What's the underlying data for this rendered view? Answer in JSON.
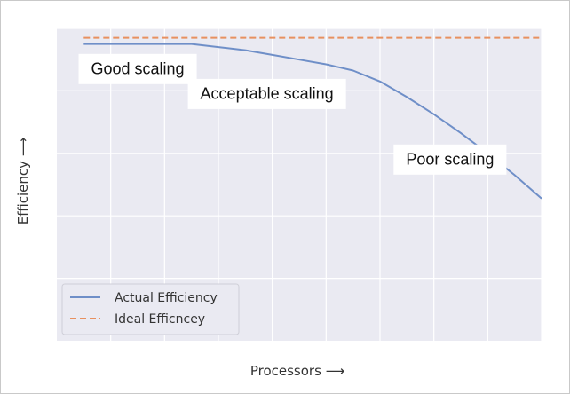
{
  "chart_data": {
    "type": "line",
    "title": "",
    "xlabel": "Processors ⟶",
    "ylabel": "Efficiency ⟶",
    "xlim": [
      0,
      9
    ],
    "ylim": [
      0,
      1
    ],
    "grid": true,
    "tick_labels_shown": false,
    "legend_position": "lower-left",
    "series": [
      {
        "name": "Actual Efficiency",
        "style": "solid",
        "color": "#6f8fc8",
        "x": [
          0.5,
          1.5,
          2.0,
          2.5,
          3.0,
          3.5,
          4.0,
          4.5,
          5.0,
          5.5,
          6.0,
          6.5,
          7.0,
          7.5,
          8.0,
          8.5,
          9.0
        ],
        "y": [
          0.95,
          0.95,
          0.95,
          0.95,
          0.94,
          0.93,
          0.915,
          0.9,
          0.885,
          0.865,
          0.83,
          0.78,
          0.725,
          0.665,
          0.6,
          0.53,
          0.455
        ]
      },
      {
        "name": "Ideal Efficncey",
        "style": "dashed",
        "color": "#e8905f",
        "x": [
          0.5,
          9.0
        ],
        "y": [
          0.97,
          0.97
        ]
      }
    ],
    "annotations": [
      {
        "id": "good",
        "text": "Good scaling",
        "x": 1.5,
        "y": 0.87
      },
      {
        "id": "acceptable",
        "text": "Acceptable scaling",
        "x": 3.9,
        "y": 0.79
      },
      {
        "id": "poor",
        "text": "Poor scaling",
        "x": 7.3,
        "y": 0.58
      }
    ]
  }
}
